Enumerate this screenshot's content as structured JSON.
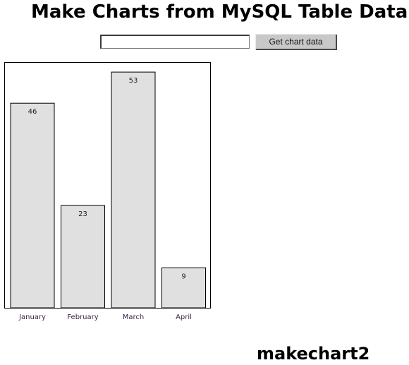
{
  "page": {
    "title": "Make Charts from MySQL Table Data",
    "footer": "makechart2"
  },
  "form": {
    "input_value": "",
    "input_placeholder": "",
    "button_label": "Get chart data"
  },
  "chart_data": {
    "type": "bar",
    "categories": [
      "January",
      "February",
      "March",
      "April"
    ],
    "values": [
      46,
      23,
      53,
      9
    ],
    "title": "",
    "xlabel": "",
    "ylabel": "",
    "ylim": [
      0,
      60
    ],
    "grid": false,
    "colors": {
      "bar_fill": "#e0e0e0",
      "bar_stroke": "#000000",
      "value_label": "#222222",
      "category_label": "#3a1f45"
    }
  }
}
